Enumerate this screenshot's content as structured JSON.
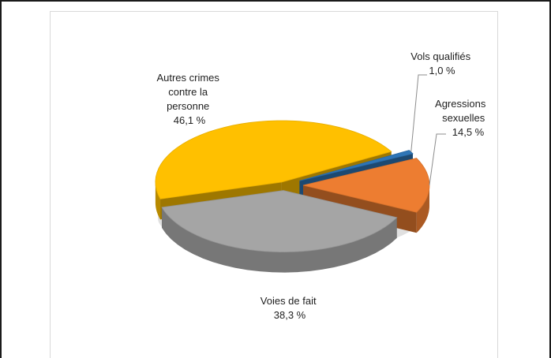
{
  "chart_data": {
    "type": "pie",
    "title": "",
    "unit": "%",
    "slices": [
      {
        "name": "Autres crimes contre la personne",
        "label_lines": [
          "Autres crimes",
          "contre  la",
          "personne"
        ],
        "value": 46.1,
        "value_label": "46,1 %",
        "color": "#FFC000"
      },
      {
        "name": "Vols qualifiés",
        "label_lines": [
          "Vols qualifiés"
        ],
        "value": 1.0,
        "value_label": "1,0 %",
        "color": "#2E75B6"
      },
      {
        "name": "Agressions sexuelles",
        "label_lines": [
          "Agressions",
          "sexuelles"
        ],
        "value": 14.5,
        "value_label": "14,5 %",
        "color": "#ED7D31"
      },
      {
        "name": "Voies de fait",
        "label_lines": [
          "Voies de fait"
        ],
        "value": 38.3,
        "value_label": "38,3 %",
        "color": "#A5A5A5"
      }
    ]
  }
}
